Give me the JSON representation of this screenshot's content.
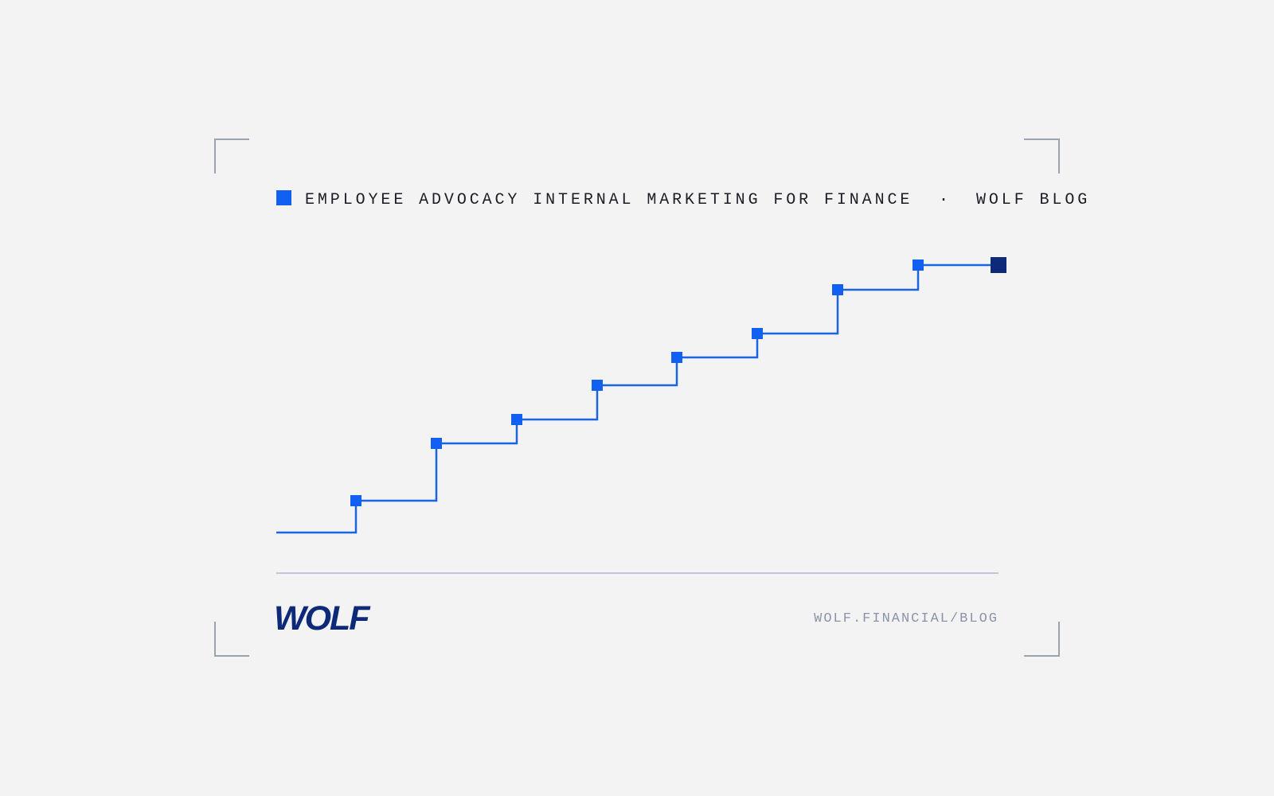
{
  "header": {
    "title": "EMPLOYEE ADVOCACY INTERNAL MARKETING FOR FINANCE",
    "separator": "·",
    "section": "WOLF BLOG"
  },
  "footer": {
    "logo": "WOLF",
    "url": "WOLF.FINANCIAL/BLOG"
  }
}
